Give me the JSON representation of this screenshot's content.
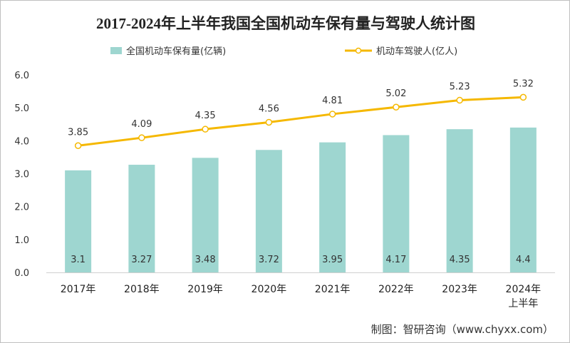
{
  "chart_data": {
    "type": "bar+line",
    "title": "2017-2024年上半年我国全国机动车保有量与驾驶人统计图",
    "categories": [
      "2017年",
      "2018年",
      "2019年",
      "2020年",
      "2021年",
      "2022年",
      "2023年",
      "2024年\n上半年"
    ],
    "series": [
      {
        "name": "全国机动车保有量(亿辆)",
        "type": "bar",
        "color": "#9ed6d0",
        "values": [
          3.1,
          3.27,
          3.48,
          3.72,
          3.95,
          4.17,
          4.35,
          4.4
        ],
        "labels": [
          "3.1",
          "3.27",
          "3.48",
          "3.72",
          "3.95",
          "4.17",
          "4.35",
          "4.4"
        ]
      },
      {
        "name": "机动车驾驶人(亿人)",
        "type": "line",
        "color": "#f5b800",
        "values": [
          3.85,
          4.09,
          4.35,
          4.56,
          4.81,
          5.02,
          5.23,
          5.32
        ],
        "labels": [
          "3.85",
          "4.09",
          "4.35",
          "4.56",
          "4.81",
          "5.02",
          "5.23",
          "5.32"
        ]
      }
    ],
    "ylim": [
      0,
      6
    ],
    "yticks": [
      "0.0",
      "1.0",
      "2.0",
      "3.0",
      "4.0",
      "5.0",
      "6.0"
    ],
    "legend": "top",
    "grid": false
  },
  "source": "制图：智研咨询（www.chyxx.com）"
}
